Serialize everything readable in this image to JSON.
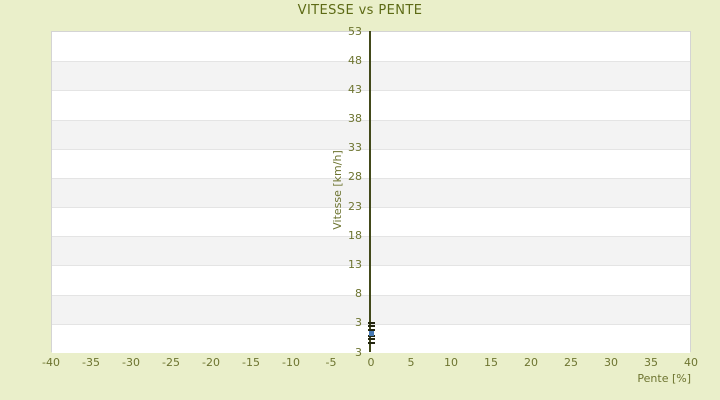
{
  "chart_data": {
    "type": "scatter",
    "title": "VITESSE vs PENTE",
    "xlabel": "Pente [%]",
    "ylabel": "Vitesse [km/h]",
    "xlim": [
      -40,
      40
    ],
    "ylim_render": [
      -2,
      53
    ],
    "x_tick_labels": [
      "-40",
      "-35",
      "-30",
      "-25",
      "-20",
      "-15",
      "-10",
      "-5",
      "0",
      "5",
      "10",
      "15",
      "20",
      "25",
      "30",
      "35",
      "40"
    ],
    "y_tick_labels": [
      "53",
      "48",
      "43",
      "38",
      "33",
      "28",
      "23",
      "18",
      "13",
      "8",
      "3",
      "3"
    ],
    "grid": "alternating horizontal bands",
    "legend_position": "none",
    "axis_line_at_x": 0,
    "series": [
      {
        "name": "vitesse-points",
        "marker": "dash",
        "color": "#23250f",
        "points": [
          {
            "x": 0,
            "y": 3.0
          },
          {
            "x": 0,
            "y": 2.4
          },
          {
            "x": 0,
            "y": 1.8
          },
          {
            "x": 0,
            "y": 0.7
          },
          {
            "x": 0,
            "y": 0.2
          },
          {
            "x": 0,
            "y": -0.4
          }
        ]
      },
      {
        "name": "highlighted-point",
        "marker": "square",
        "color": "#4779b4",
        "points": [
          {
            "x": 0,
            "y": 1.2
          }
        ]
      }
    ]
  },
  "colors": {
    "background": "#eaefca",
    "band_light": "#ffffff",
    "band_dark": "#f3f3f3",
    "band_border": "#e4e4e4",
    "plot_border": "#d4d4d4",
    "axis_line": "#42491a",
    "tick_text": "#6d7430",
    "title_text": "#5d6a15",
    "marker_dark": "#23250f",
    "marker_highlight": "#4779b4"
  }
}
